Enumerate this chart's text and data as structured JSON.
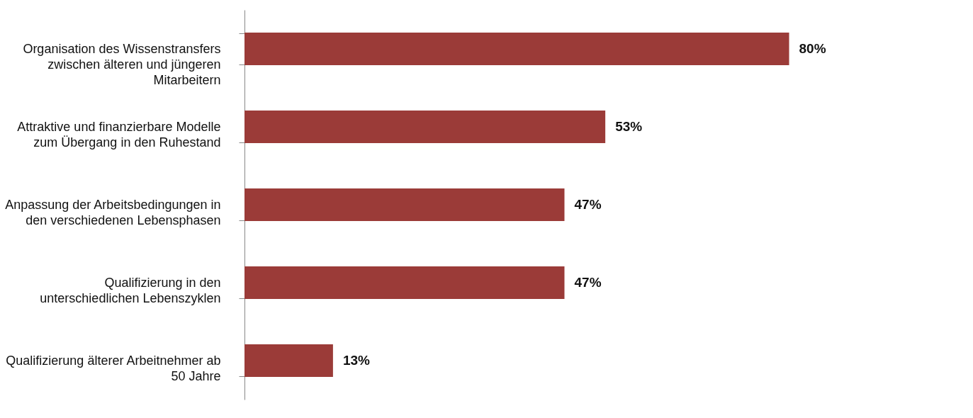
{
  "chart_data": {
    "type": "bar",
    "orientation": "horizontal",
    "categories": [
      "Organisation des Wissenstransfers zwischen älteren und jüngeren Mitarbeitern",
      "Attraktive und finanzierbare Modelle zum Übergang in den Ruhestand",
      "Anpassung der Arbeitsbedingungen in den verschiedenen Lebensphasen",
      "Qualifizierung in den unterschiedlichen Lebenszyklen",
      "Qualifizierung älterer Arbeitnehmer ab 50 Jahre"
    ],
    "values": [
      80,
      53,
      47,
      47,
      13
    ],
    "color": "#9b3b38",
    "value_labels": [
      "80%",
      "53%",
      "47%",
      "47%",
      "13%"
    ],
    "grid": false
  }
}
